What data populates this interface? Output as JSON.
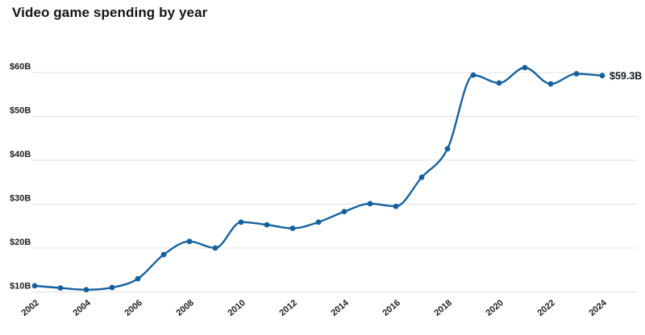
{
  "chart_data": {
    "type": "line",
    "title": "Video game spending by year",
    "x": [
      2002,
      2003,
      2004,
      2005,
      2006,
      2007,
      2008,
      2009,
      2010,
      2011,
      2012,
      2013,
      2014,
      2015,
      2016,
      2017,
      2018,
      2019,
      2020,
      2021,
      2022,
      2023,
      2024
    ],
    "values": [
      11.4,
      10.9,
      10.5,
      11.0,
      13.0,
      18.5,
      21.5,
      20.0,
      25.9,
      25.3,
      24.5,
      25.9,
      28.3,
      30.1,
      29.5,
      36.1,
      42.6,
      59.4,
      57.6,
      61.1,
      57.4,
      59.7,
      59.3
    ],
    "unit": "USD billions",
    "x_tick_labels": [
      "2002",
      "2004",
      "2006",
      "2008",
      "2010",
      "2012",
      "2014",
      "2016",
      "2018",
      "2020",
      "2022",
      "2024"
    ],
    "y_tick_values": [
      10,
      20,
      30,
      40,
      50,
      60
    ],
    "y_tick_labels": [
      "$10B",
      "$20B",
      "$30B",
      "$40B",
      "$50B",
      "$60B"
    ],
    "ylim": [
      10,
      62
    ],
    "grid": true,
    "legend_position": "none",
    "end_annotation": {
      "label": "$59.3B",
      "year": 2024,
      "value": 59.3
    },
    "colors": {
      "line": "#15619e",
      "point": "#15619e",
      "grid": "#e0e0e0",
      "axis_text": "#1f1f1f",
      "title": "#141414",
      "annotation": "#10161f"
    }
  }
}
